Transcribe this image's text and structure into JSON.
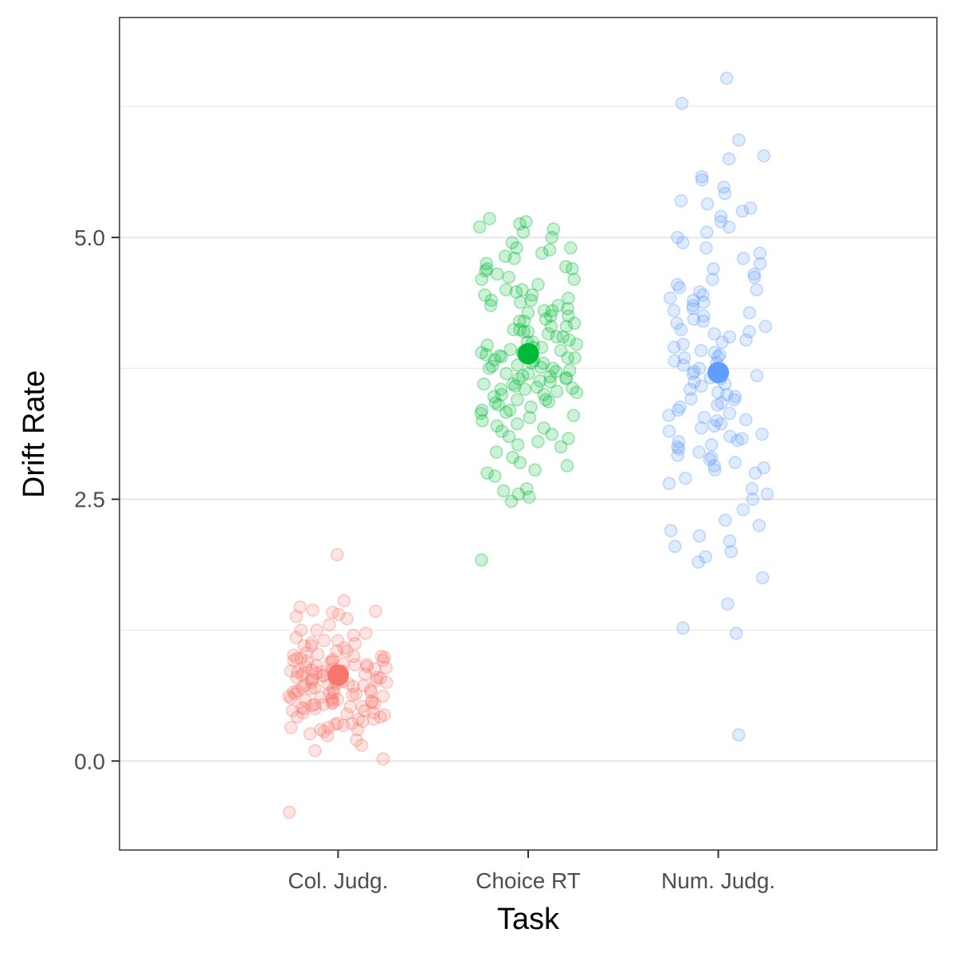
{
  "chart_data": {
    "type": "scatter",
    "title": "",
    "xlabel": "Task",
    "ylabel": "Drift Rate",
    "categories": [
      "Col. Judg.",
      "Choice RT",
      "Num. Judg."
    ],
    "ylim": [
      -0.85,
      7.1
    ],
    "y_ticks": [
      "0.0",
      "2.5",
      "5.0"
    ],
    "grid": "horizontal major and minor",
    "legend": "none",
    "point_alpha": 0.2,
    "series": [
      {
        "category": "Col. Judg.",
        "color": "#F8766D",
        "mean": 0.82,
        "values": [
          1.97,
          1.53,
          1.47,
          1.44,
          1.42,
          1.4,
          1.38,
          1.43,
          1.36,
          1.3,
          1.25,
          1.22,
          1.2,
          1.18,
          1.15,
          1.13,
          1.12,
          1.1,
          1.08,
          1.05,
          1.03,
          1.01,
          1.0,
          0.99,
          0.98,
          0.97,
          0.96,
          0.95,
          0.94,
          0.93,
          0.92,
          0.91,
          0.9,
          0.89,
          0.88,
          0.87,
          0.86,
          0.85,
          0.84,
          0.83,
          0.82,
          0.81,
          0.8,
          0.79,
          0.78,
          0.77,
          0.76,
          0.75,
          0.74,
          0.73,
          0.72,
          0.71,
          0.7,
          0.69,
          0.68,
          0.67,
          0.66,
          0.65,
          0.64,
          0.63,
          0.62,
          0.61,
          0.6,
          0.59,
          0.58,
          0.57,
          0.56,
          0.55,
          0.54,
          0.53,
          0.52,
          0.51,
          0.5,
          0.48,
          0.46,
          0.44,
          0.42,
          0.4,
          0.38,
          0.36,
          0.34,
          0.32,
          0.3,
          0.28,
          0.26,
          0.24,
          0.2,
          0.15,
          0.1,
          0.02,
          -0.49,
          1.15,
          1.05,
          0.95,
          0.85,
          0.75,
          0.65,
          0.55,
          0.45,
          0.35,
          1.25,
          0.9,
          0.8,
          0.7,
          0.6,
          0.5,
          0.4,
          0.3,
          1.0,
          0.88,
          0.78,
          0.68,
          0.58,
          0.48,
          0.98,
          0.86,
          0.76,
          0.66,
          0.56,
          0.46,
          0.36,
          0.96,
          0.84,
          0.74,
          0.64,
          0.54,
          1.1,
          1.02,
          0.92,
          0.82,
          0.72,
          0.62,
          0.52,
          0.42,
          0.32
        ]
      },
      {
        "category": "Choice RT",
        "color": "#00BA38",
        "mean": 3.89,
        "values": [
          5.18,
          5.15,
          5.13,
          5.1,
          5.08,
          5.05,
          5.0,
          4.95,
          4.9,
          4.88,
          4.85,
          4.82,
          4.8,
          4.75,
          4.72,
          4.7,
          4.68,
          4.65,
          4.62,
          4.6,
          4.55,
          4.5,
          4.48,
          4.45,
          4.42,
          4.4,
          4.38,
          4.35,
          4.32,
          4.3,
          4.28,
          4.25,
          4.22,
          4.2,
          4.18,
          4.15,
          4.12,
          4.1,
          4.08,
          4.05,
          4.02,
          4.0,
          3.98,
          3.95,
          3.92,
          3.9,
          3.88,
          3.85,
          3.82,
          3.8,
          3.78,
          3.75,
          3.72,
          3.7,
          3.68,
          3.65,
          3.62,
          3.6,
          3.58,
          3.55,
          3.52,
          3.5,
          3.48,
          3.45,
          3.42,
          3.4,
          3.38,
          3.35,
          3.32,
          3.3,
          3.28,
          3.25,
          3.22,
          3.2,
          3.18,
          3.15,
          3.12,
          3.1,
          3.08,
          3.05,
          3.02,
          3.0,
          2.95,
          2.9,
          2.85,
          2.82,
          2.78,
          2.75,
          2.72,
          2.6,
          2.58,
          2.55,
          2.52,
          2.48,
          1.92,
          4.45,
          4.3,
          4.1,
          3.95,
          3.85,
          3.75,
          3.65,
          3.55,
          3.45,
          3.35,
          4.4,
          4.25,
          4.05,
          3.9,
          3.8,
          3.7,
          3.6,
          3.5,
          4.15,
          4.0,
          3.86,
          3.76,
          3.66,
          3.56,
          4.9,
          4.7,
          4.35,
          4.2,
          3.97,
          3.87,
          3.77,
          3.67,
          3.57,
          4.6,
          4.5,
          4.12,
          3.93,
          3.83,
          3.73,
          3.63,
          3.53,
          3.43,
          3.33
        ]
      },
      {
        "category": "Num. Judg.",
        "color": "#619CFF",
        "mean": 3.71,
        "values": [
          6.52,
          6.28,
          5.93,
          5.78,
          5.75,
          5.58,
          5.55,
          5.48,
          5.42,
          5.35,
          5.32,
          5.28,
          5.25,
          5.2,
          5.15,
          5.1,
          5.05,
          5.0,
          4.95,
          4.9,
          4.85,
          4.8,
          4.75,
          4.7,
          4.65,
          4.6,
          4.55,
          4.5,
          4.45,
          4.4,
          4.35,
          4.3,
          4.25,
          4.2,
          4.15,
          4.1,
          4.05,
          4.0,
          3.95,
          3.9,
          3.85,
          3.8,
          3.75,
          3.7,
          3.65,
          3.6,
          3.55,
          3.5,
          3.45,
          3.4,
          3.35,
          3.3,
          3.25,
          3.2,
          3.15,
          3.1,
          3.05,
          3.0,
          2.95,
          2.9,
          2.85,
          2.8,
          2.75,
          2.7,
          2.65,
          2.6,
          2.55,
          2.5,
          2.4,
          2.3,
          2.25,
          2.2,
          2.15,
          2.1,
          2.05,
          2.0,
          1.95,
          1.9,
          1.75,
          1.5,
          1.27,
          1.22,
          0.25,
          4.42,
          4.32,
          4.12,
          3.92,
          3.82,
          3.62,
          3.52,
          3.42,
          3.22,
          3.12,
          2.92,
          4.38,
          4.18,
          3.98,
          3.78,
          3.58,
          3.38,
          3.18,
          2.98,
          2.88,
          4.48,
          4.28,
          4.08,
          3.88,
          3.68,
          3.48,
          3.28,
          3.08,
          2.78,
          4.22,
          4.02,
          3.72,
          3.32,
          3.02,
          2.82,
          4.62,
          4.52,
          3.86,
          3.66,
          3.46,
          3.26,
          3.06
        ]
      }
    ]
  }
}
